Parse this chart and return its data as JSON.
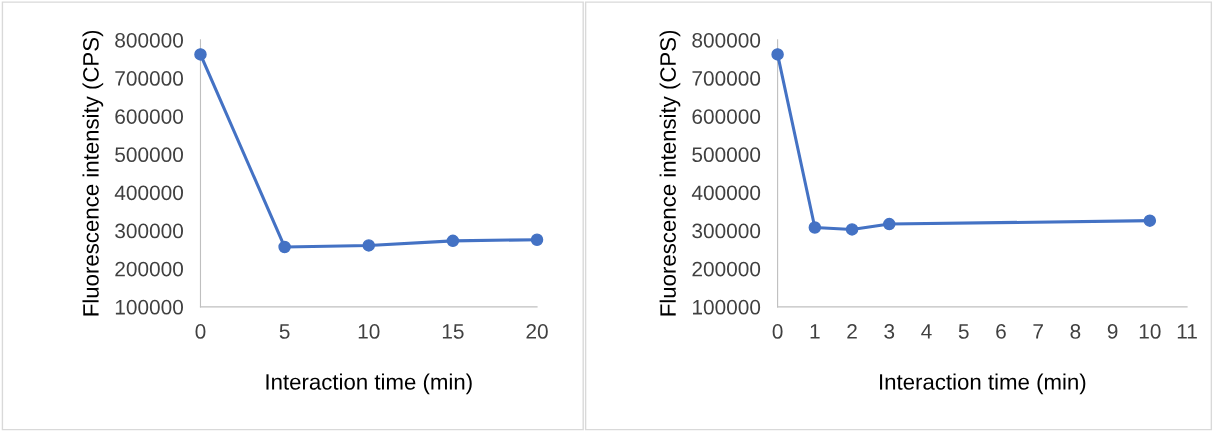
{
  "chart_data": [
    {
      "type": "line",
      "xlabel": "Interaction time (min)",
      "ylabel": "Fluorescence intensity (CPS)",
      "x": [
        0,
        5,
        10,
        15,
        20
      ],
      "series": [
        {
          "color": "#4472c4",
          "values": [
            762000,
            257000,
            261000,
            273000,
            276000
          ]
        }
      ],
      "xlim": [
        0,
        20
      ],
      "xticks": [
        0,
        5,
        10,
        15,
        20
      ],
      "ylim": [
        100000,
        800000
      ],
      "yticks": [
        100000,
        200000,
        300000,
        400000,
        500000,
        600000,
        700000,
        800000
      ],
      "marker": "circle",
      "line_style": "solid",
      "grid": false,
      "legend": false
    },
    {
      "type": "line",
      "xlabel": "Interaction time (min)",
      "ylabel": "Fluorescence intensity (CPS)",
      "x": [
        0,
        1,
        2,
        3,
        10
      ],
      "series": [
        {
          "color": "#4472c4",
          "values": [
            762000,
            308000,
            303000,
            317000,
            326000
          ]
        }
      ],
      "xlim": [
        0,
        11
      ],
      "xticks": [
        0,
        1,
        2,
        3,
        4,
        5,
        6,
        7,
        8,
        9,
        10,
        11
      ],
      "ylim": [
        100000,
        800000
      ],
      "yticks": [
        100000,
        200000,
        300000,
        400000,
        500000,
        600000,
        700000,
        800000
      ],
      "marker": "circle",
      "line_style": "solid",
      "grid": false,
      "legend": false
    }
  ]
}
